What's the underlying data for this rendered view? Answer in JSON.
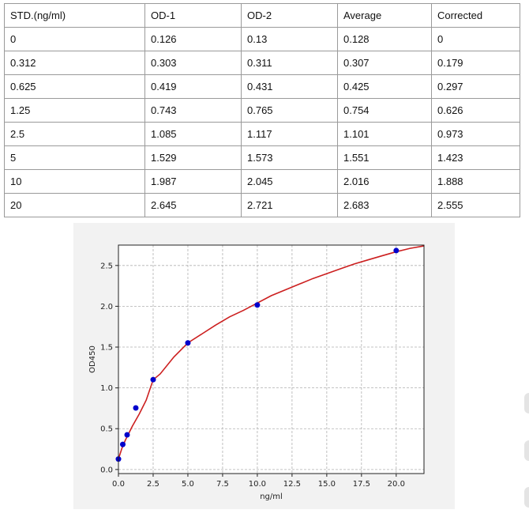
{
  "table": {
    "headers": [
      "STD.(ng/ml)",
      "OD-1",
      "OD-2",
      "Average",
      "Corrected"
    ],
    "rows": [
      [
        "0",
        "0.126",
        "0.13",
        "0.128",
        "0"
      ],
      [
        "0.312",
        "0.303",
        "0.311",
        "0.307",
        "0.179"
      ],
      [
        "0.625",
        "0.419",
        "0.431",
        "0.425",
        "0.297"
      ],
      [
        "1.25",
        "0.743",
        "0.765",
        "0.754",
        "0.626"
      ],
      [
        "2.5",
        "1.085",
        "1.117",
        "1.101",
        "0.973"
      ],
      [
        "5",
        "1.529",
        "1.573",
        "1.551",
        "1.423"
      ],
      [
        "10",
        "1.987",
        "2.045",
        "2.016",
        "1.888"
      ],
      [
        "20",
        "2.645",
        "2.721",
        "2.683",
        "2.555"
      ]
    ]
  },
  "chart_data": {
    "type": "scatter",
    "xlabel": "ng/ml",
    "ylabel": "OD450",
    "xlim": [
      0,
      22
    ],
    "ylim": [
      -0.05,
      2.75
    ],
    "xticks": [
      0,
      2.5,
      5,
      7.5,
      10,
      12.5,
      15,
      17.5,
      20
    ],
    "xtick_labels": [
      "0.0",
      "2.5",
      "5.0",
      "7.5",
      "10.0",
      "12.5",
      "15.0",
      "17.5",
      "20.0"
    ],
    "yticks": [
      0,
      0.5,
      1,
      1.5,
      2,
      2.5
    ],
    "ytick_labels": [
      "0.0",
      "0.5",
      "1.0",
      "1.5",
      "2.0",
      "2.5"
    ],
    "grid": true,
    "points": {
      "x": [
        0,
        0.312,
        0.625,
        1.25,
        2.5,
        5,
        10,
        20
      ],
      "y": [
        0.128,
        0.307,
        0.425,
        0.754,
        1.101,
        1.551,
        2.016,
        2.683
      ],
      "color": "#0000cc"
    },
    "fit_curve": {
      "x": [
        0,
        0.25,
        0.5,
        1,
        1.5,
        2,
        2.5,
        3,
        4,
        5,
        6,
        7,
        8,
        9,
        10,
        11,
        12,
        13,
        14,
        15,
        16,
        17,
        18,
        19,
        20,
        21,
        22
      ],
      "y": [
        0.128,
        0.26,
        0.36,
        0.53,
        0.68,
        0.85,
        1.1,
        1.17,
        1.38,
        1.551,
        1.66,
        1.77,
        1.87,
        1.95,
        2.04,
        2.13,
        2.2,
        2.27,
        2.34,
        2.4,
        2.46,
        2.52,
        2.57,
        2.62,
        2.668,
        2.71,
        2.74
      ],
      "color": "#cc1f1f"
    }
  }
}
